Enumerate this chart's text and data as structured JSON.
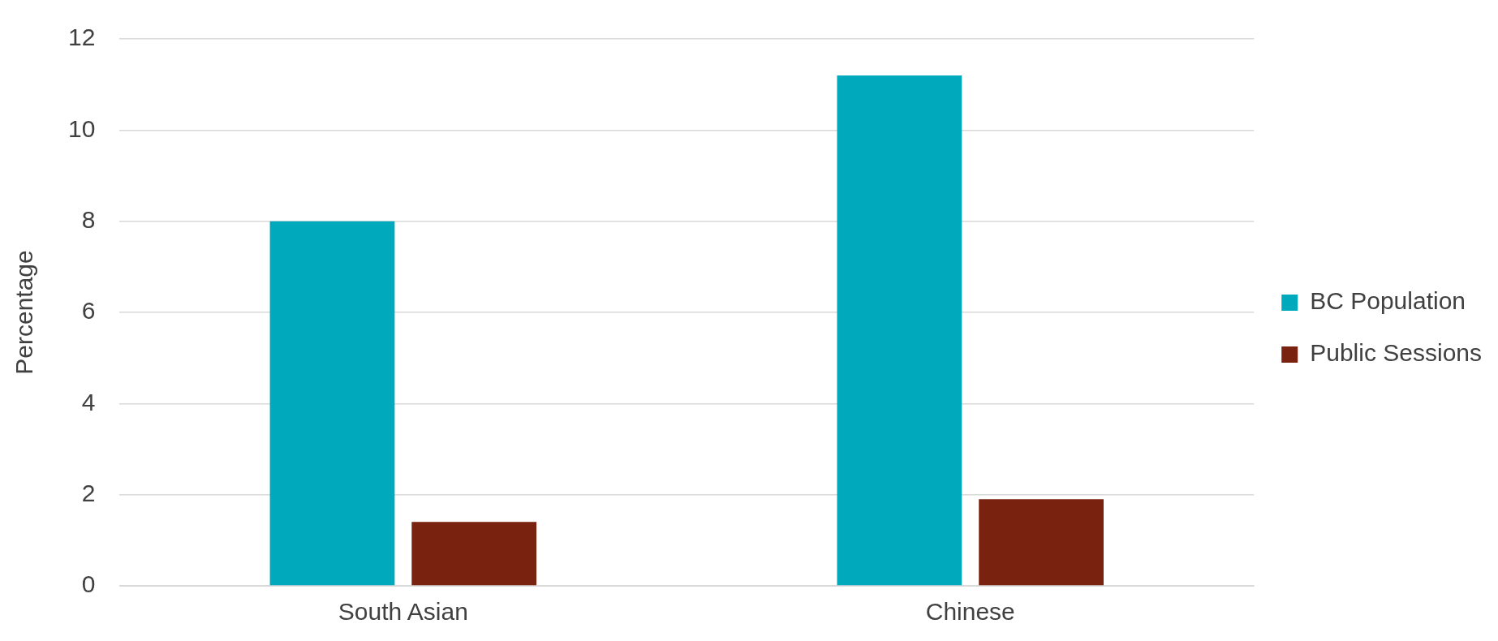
{
  "chart_data": {
    "type": "bar",
    "ylabel": "Percentage",
    "categories": [
      "South Asian",
      "Chinese"
    ],
    "series": [
      {
        "name": "BC Population",
        "color": "#00a9bc",
        "values": [
          8.0,
          11.2
        ]
      },
      {
        "name": "Public Sessions",
        "color": "#7a2210",
        "values": [
          1.4,
          1.9
        ]
      }
    ],
    "ylim": [
      0,
      12
    ],
    "yticks": [
      0,
      2,
      4,
      6,
      8,
      10,
      12
    ],
    "grid": "y",
    "legend": "right"
  }
}
